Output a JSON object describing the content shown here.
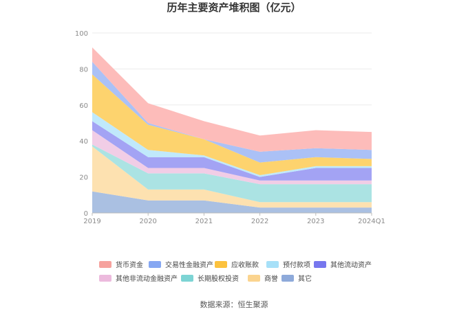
{
  "chart_data": {
    "type": "area",
    "stacked": true,
    "title": "历年主要资产堆积图（亿元）",
    "categories": [
      "2019",
      "2020",
      "2021",
      "2022",
      "2023",
      "2024Q1"
    ],
    "ylim": [
      0,
      100
    ],
    "yticks": [
      0,
      20,
      40,
      60,
      80,
      100
    ],
    "grid": true,
    "legend_position": "bottom",
    "series": [
      {
        "name": "其它",
        "color": "#aac0e2",
        "values": [
          12,
          7,
          7,
          3,
          3,
          3
        ]
      },
      {
        "name": "商誉",
        "color": "#fde1b0",
        "values": [
          25,
          6,
          6,
          3,
          3,
          3
        ]
      },
      {
        "name": "长期股权投资",
        "color": "#abe3e3",
        "values": [
          1,
          9,
          9,
          10,
          10,
          10
        ]
      },
      {
        "name": "其他非流动金融资产",
        "color": "#f1cde6",
        "values": [
          8,
          3,
          3,
          2,
          2,
          2
        ]
      },
      {
        "name": "其他流动资产",
        "color": "#a3a3f4",
        "values": [
          5,
          6,
          6,
          2,
          7,
          7
        ]
      },
      {
        "name": "预付款项",
        "color": "#c0e9fb",
        "values": [
          5,
          4,
          1,
          1,
          1,
          1
        ]
      },
      {
        "name": "应收账款",
        "color": "#fdd36e",
        "values": [
          21,
          14,
          9,
          7,
          5,
          4
        ]
      },
      {
        "name": "交易性金融资产",
        "color": "#abc1f6",
        "values": [
          7,
          1,
          0,
          6,
          5,
          5
        ]
      },
      {
        "name": "货币资金",
        "color": "#fdbcba",
        "values": [
          8,
          11,
          10,
          9,
          10,
          10
        ]
      }
    ],
    "legend": [
      {
        "name": "货币资金",
        "color": "#f6a29e"
      },
      {
        "name": "交易性金融资产",
        "color": "#86a7f2"
      },
      {
        "name": "应收账款",
        "color": "#fcc23e"
      },
      {
        "name": "预付款项",
        "color": "#a7e0f8"
      },
      {
        "name": "其他流动资产",
        "color": "#7777ee"
      },
      {
        "name": "其他非流动金融资产",
        "color": "#ecbadd"
      },
      {
        "name": "长期股权投资",
        "color": "#7dd4d4"
      },
      {
        "name": "商誉",
        "color": "#fbd48f"
      },
      {
        "name": "其它",
        "color": "#8eaada"
      }
    ]
  },
  "source_text": "数据来源：恒生聚源"
}
